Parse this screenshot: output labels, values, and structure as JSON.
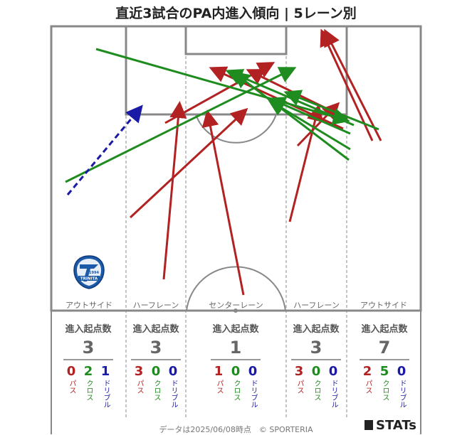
{
  "title": "直近3試合のPA内進入傾向 | 5レーン別",
  "lanes": [
    {
      "label": "アウトサイド",
      "stat_header": "進入起点数",
      "total": "3",
      "pass": "0",
      "cross": "2",
      "dribble": "1"
    },
    {
      "label": "ハーフレーン",
      "stat_header": "進入起点数",
      "total": "3",
      "pass": "3",
      "cross": "0",
      "dribble": "0"
    },
    {
      "label": "センターレーン",
      "stat_header": "進入起点数",
      "total": "1",
      "pass": "1",
      "cross": "0",
      "dribble": "0"
    },
    {
      "label": "ハーフレーン",
      "stat_header": "進入起点数",
      "total": "3",
      "pass": "3",
      "cross": "0",
      "dribble": "0"
    },
    {
      "label": "アウトサイド",
      "stat_header": "進入起点数",
      "total": "7",
      "pass": "2",
      "cross": "5",
      "dribble": "0"
    }
  ],
  "legend": {
    "pass": "パス",
    "cross": "クロス",
    "dribble": "ドリブル"
  },
  "colors": {
    "pass": "#b22222",
    "cross": "#1e8c1e",
    "dribble": "#1a1aa6",
    "pitch_line": "#888888"
  },
  "logo": {
    "icon": "team-crest-icon",
    "text": "TRINITA",
    "year": "1994"
  },
  "footer": "データは2025/06/08時点　© SPORTERIA",
  "brand": "STATs"
}
